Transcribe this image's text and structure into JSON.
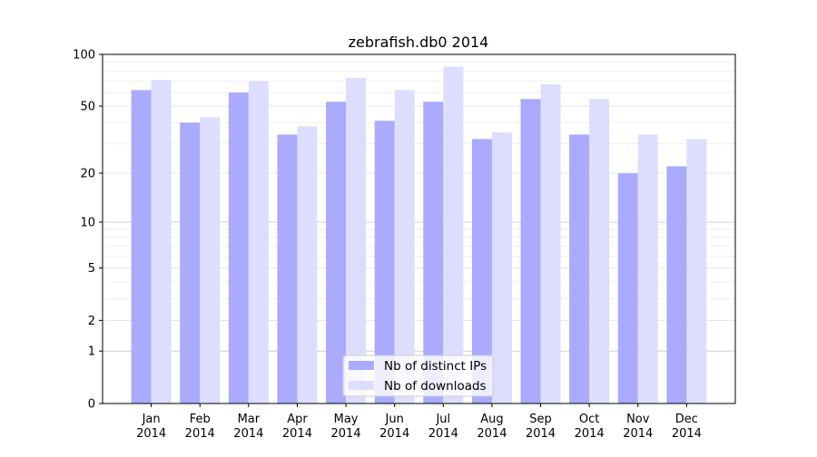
{
  "chart_data": {
    "type": "bar",
    "title": "zebrafish.db0 2014",
    "xlabel": "",
    "ylabel": "",
    "yscale": "log(1+y)",
    "ylim": [
      0,
      100
    ],
    "yticks": [
      0,
      1,
      2,
      5,
      10,
      20,
      50,
      100
    ],
    "grid": true,
    "legend_position": "lower center",
    "categories": [
      "Jan\n2014",
      "Feb\n2014",
      "Mar\n2014",
      "Apr\n2014",
      "May\n2014",
      "Jun\n2014",
      "Jul\n2014",
      "Aug\n2014",
      "Sep\n2014",
      "Oct\n2014",
      "Nov\n2014",
      "Dec\n2014"
    ],
    "series": [
      {
        "name": "Nb of distinct IPs",
        "color": "#aaaaff",
        "values": [
          62,
          40,
          60,
          34,
          53,
          41,
          53,
          32,
          55,
          34,
          20,
          22
        ]
      },
      {
        "name": "Nb of downloads",
        "color": "#ddddff",
        "values": [
          71,
          43,
          70,
          38,
          73,
          62,
          85,
          35,
          67,
          55,
          34,
          32
        ]
      }
    ]
  }
}
